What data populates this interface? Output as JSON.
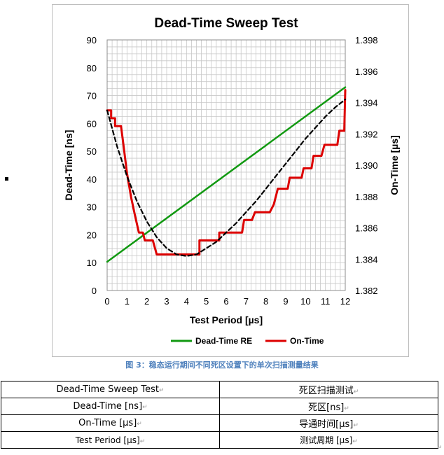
{
  "chart_data": {
    "type": "line",
    "title": "Dead-Time Sweep Test",
    "xlabel": "Test Period [µs]",
    "ylabel_left": "Dead-Time [ns]",
    "ylabel_right": "On-Time [µs]",
    "xlim": [
      0,
      12
    ],
    "ylim_left": [
      0,
      90
    ],
    "ylim_right": [
      1.382,
      1.398
    ],
    "x_ticks": [
      "0",
      "1",
      "2",
      "3",
      "4",
      "5",
      "6",
      "7",
      "8",
      "9",
      "10",
      "11",
      "12"
    ],
    "y_ticks_left": [
      "0",
      "10",
      "20",
      "30",
      "40",
      "50",
      "60",
      "70",
      "80",
      "90"
    ],
    "y_ticks_right": [
      "1.382",
      "1.384",
      "1.386",
      "1.388",
      "1.390",
      "1.392",
      "1.394",
      "1.396",
      "1.398"
    ],
    "grid": true,
    "legend_position": "bottom",
    "series": [
      {
        "name": "Dead-Time RE",
        "axis": "left",
        "color": "#119911",
        "style": "solid",
        "x": [
          0,
          12
        ],
        "y": [
          10.3,
          73
        ]
      },
      {
        "name": "On-Time",
        "axis": "right",
        "color": "#dd0000",
        "style": "step",
        "x": [
          0,
          0.2,
          0.2,
          0.4,
          0.4,
          0.7,
          0.8,
          1.0,
          1.2,
          1.4,
          1.6,
          1.6,
          1.8,
          1.9,
          1.9,
          2.3,
          2.5,
          2.5,
          4.65,
          4.65,
          5.5,
          5.65,
          5.65,
          6.8,
          6.9,
          6.9,
          7.3,
          7.45,
          7.45,
          8.2,
          8.4,
          8.6,
          8.6,
          9.1,
          9.2,
          9.2,
          9.8,
          9.9,
          9.9,
          10.3,
          10.4,
          10.4,
          10.8,
          10.95,
          10.95,
          11.6,
          11.7,
          11.7,
          11.95,
          12
        ],
        "y": [
          1.3935,
          1.3935,
          1.393,
          1.393,
          1.3925,
          1.3925,
          1.3915,
          1.3895,
          1.388,
          1.3868,
          1.3857,
          1.3857,
          1.3857,
          1.3852,
          1.3852,
          1.3852,
          1.3843,
          1.3843,
          1.3843,
          1.3852,
          1.3852,
          1.3852,
          1.3857,
          1.3857,
          1.3865,
          1.3865,
          1.3865,
          1.387,
          1.387,
          1.387,
          1.3875,
          1.3885,
          1.3885,
          1.3885,
          1.3892,
          1.3892,
          1.3892,
          1.3898,
          1.3898,
          1.3898,
          1.3906,
          1.3906,
          1.3906,
          1.3913,
          1.3913,
          1.3913,
          1.3922,
          1.3922,
          1.3922,
          1.3948
        ]
      },
      {
        "name": "",
        "axis": "right",
        "color": "#000000",
        "style": "dashed",
        "x": [
          0,
          0.5,
          1,
          1.5,
          2,
          2.5,
          3,
          3.5,
          4,
          4.5,
          5,
          5.5,
          6,
          6.5,
          7,
          7.5,
          8,
          8.5,
          9,
          9.5,
          10,
          10.5,
          11,
          11.5,
          12
        ],
        "y": [
          1.3935,
          1.3912,
          1.3893,
          1.3877,
          1.3864,
          1.3854,
          1.3847,
          1.3843,
          1.3842,
          1.3843,
          1.3847,
          1.3851,
          1.3857,
          1.3863,
          1.387,
          1.3877,
          1.3885,
          1.3893,
          1.3901,
          1.3909,
          1.3917,
          1.3924,
          1.3931,
          1.3937,
          1.3942
        ]
      }
    ]
  },
  "caption": "图 3：稳态运行期间不同死区设置下的单次扫描测量结果",
  "glossary": {
    "rows": [
      {
        "en": "Dead-Time Sweep Test",
        "zh": "死区扫描测试"
      },
      {
        "en": "Dead-Time [ns]",
        "zh": "死区[ns]"
      },
      {
        "en": "On-Time [µs]",
        "zh": "导通时间[µs]"
      },
      {
        "en": "Test Period [µs]",
        "zh": "测试周期 [µs]"
      }
    ],
    "paragraph_mark": "↵"
  }
}
